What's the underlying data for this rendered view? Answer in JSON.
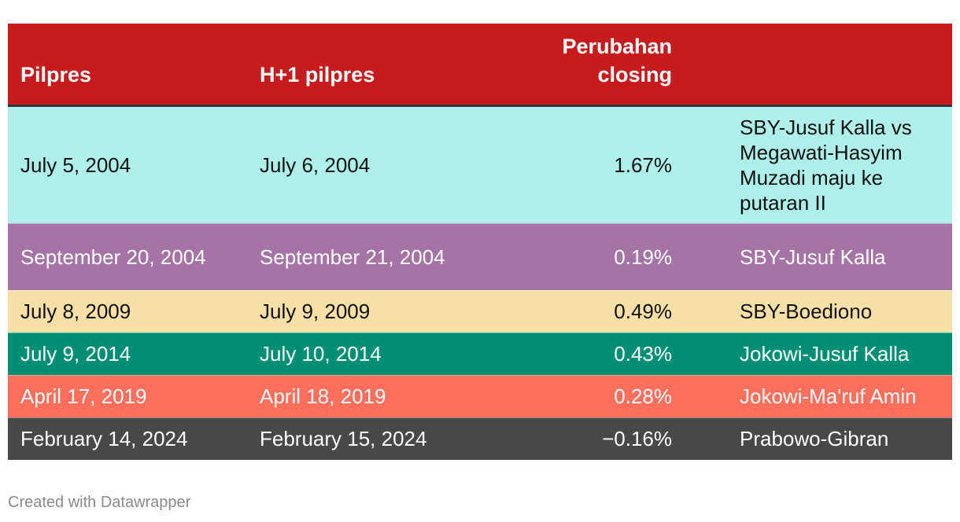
{
  "chart_data": {
    "type": "table",
    "columns": [
      "Pilpres",
      "H+1 pilpres",
      "Perubahan closing",
      ""
    ],
    "rows": [
      {
        "pilpres": "July 5, 2004",
        "h1": "July 6, 2004",
        "change": "1.67%",
        "desc": "SBY-Jusuf Kalla vs Megawati-Hasyim Muzadi maju ke putaran II",
        "bg": "#aeeeeb",
        "fg": "#111111"
      },
      {
        "pilpres": "September 20, 2004",
        "h1": "September 21, 2004",
        "change": "0.19%",
        "desc": "SBY-Jusuf Kalla",
        "bg": "#a574a5",
        "fg": "#ffffff"
      },
      {
        "pilpres": "July 8, 2009",
        "h1": "July 9, 2009",
        "change": "0.49%",
        "desc": "SBY-Boediono",
        "bg": "#f7e0a8",
        "fg": "#111111"
      },
      {
        "pilpres": "July 9, 2014",
        "h1": "July 10, 2014",
        "change": "0.43%",
        "desc": "Jokowi-Jusuf Kalla",
        "bg": "#008f75",
        "fg": "#ffffff"
      },
      {
        "pilpres": "April 17, 2019",
        "h1": "April 18, 2019",
        "change": "0.28%",
        "desc": "Jokowi-Ma'ruf Amin",
        "bg": "#ff6f5c",
        "fg": "#ffffff"
      },
      {
        "pilpres": "February 14, 2024",
        "h1": "February 15, 2024",
        "change": "−0.16%",
        "desc": "Prabowo-Gibran",
        "bg": "#484848",
        "fg": "#ffffff"
      }
    ],
    "header_color": "#c71c1d"
  },
  "footer": {
    "credit": "Created with Datawrapper"
  }
}
